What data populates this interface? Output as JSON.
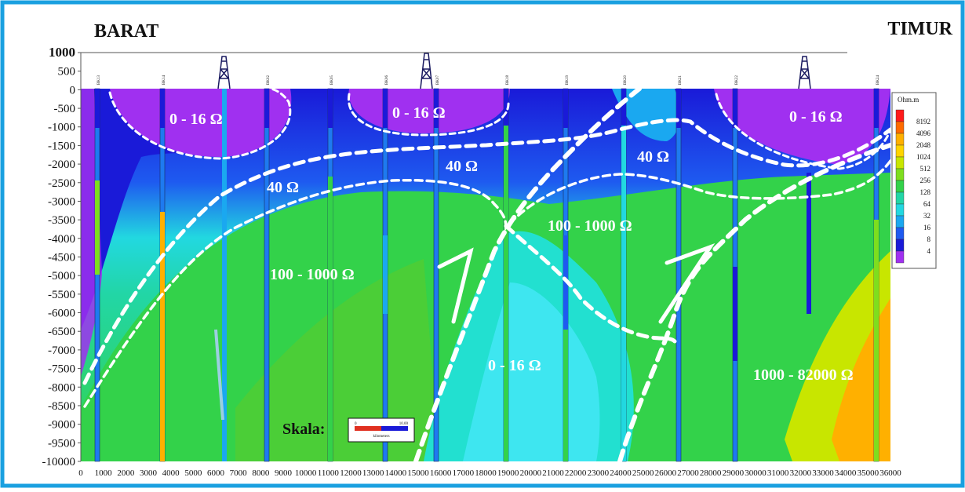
{
  "header": {
    "left_title": "BARAT",
    "right_title": "TIMUR"
  },
  "y_axis": {
    "ticks": [
      "1000",
      "500",
      "0",
      "-500",
      "-1000",
      "-1500",
      "-2000",
      "-2500",
      "-3000",
      "-3500",
      "-4000",
      "-4500",
      "-5000",
      "-5500",
      "-6000",
      "-6500",
      "-7000",
      "-7500",
      "-8000",
      "-8500",
      "-9000",
      "-9500",
      "-10000"
    ]
  },
  "x_axis": {
    "ticks": [
      "0",
      "1000",
      "2000",
      "3000",
      "4000",
      "5000",
      "6000",
      "7000",
      "8000",
      "9000",
      "10000",
      "11000",
      "12000",
      "13000",
      "14000",
      "15000",
      "16000",
      "17000",
      "18000",
      "19000",
      "20000",
      "21000",
      "22000",
      "23000",
      "24000",
      "25000",
      "26000",
      "27000",
      "28000",
      "29000",
      "30000",
      "31000",
      "32000",
      "33000",
      "34000",
      "35000",
      "36000"
    ]
  },
  "wells": [
    "BK13",
    "BK14",
    "BK02",
    "BK05",
    "BK06",
    "BK07",
    "BK18",
    "BK19",
    "BK20",
    "BK21",
    "BK22",
    "BK24"
  ],
  "zone_labels": {
    "z1": "0 - 16 Ω",
    "z2": "0 - 16 Ω",
    "z3": "0 - 16 Ω",
    "z4": "40 Ω",
    "z5": "40 Ω",
    "z6": "40 Ω",
    "z7": "100 - 1000 Ω",
    "z8": "100 - 1000 Ω",
    "z9": "0 - 16 Ω",
    "z10": "1000 - 82000 Ω"
  },
  "legend": {
    "unit": "Ohm.m",
    "values": [
      "8192",
      "4096",
      "2048",
      "1024",
      "512",
      "256",
      "128",
      "64",
      "32",
      "16",
      "8",
      "4"
    ],
    "colors": [
      "#ff1a1a",
      "#ff6a00",
      "#ffb000",
      "#ffd400",
      "#c8e600",
      "#7ede1e",
      "#33d24a",
      "#22d6a6",
      "#22d8e0",
      "#1aa8f0",
      "#1e5af0",
      "#1a1ad8",
      "#a030f0"
    ]
  },
  "scale": {
    "label": "Skala:",
    "start": "0",
    "end": "10.00",
    "unit": "kilometers"
  },
  "colors": {
    "frame": "#1aa0e0",
    "dashed_lines": "#ffffff",
    "label_text": "#ffffff"
  }
}
